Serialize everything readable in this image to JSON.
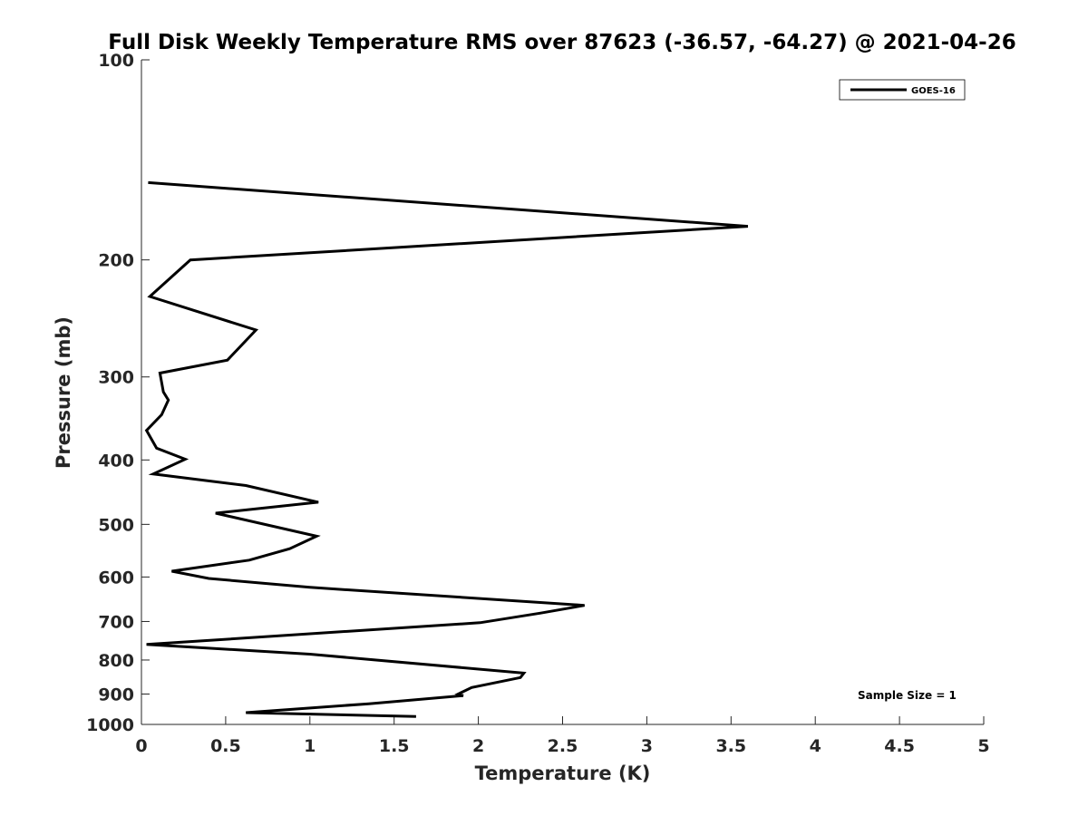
{
  "chart_data": {
    "type": "line",
    "title": "Full Disk Weekly Temperature RMS over 87623 (-36.57, -64.27) @ 2021-04-26",
    "xlabel": "Temperature (K)",
    "ylabel": "Pressure (mb)",
    "xlim": [
      0,
      5
    ],
    "ylim": [
      100,
      1000
    ],
    "y_scale": "log",
    "y_reversed": true,
    "grid": false,
    "xticks": [
      0,
      0.5,
      1,
      1.5,
      2,
      2.5,
      3,
      3.5,
      4,
      4.5,
      5
    ],
    "xtick_labels": [
      "0",
      "0.5",
      "1",
      "1.5",
      "2",
      "2.5",
      "3",
      "3.5",
      "4",
      "4.5",
      "5"
    ],
    "yticks": [
      100,
      200,
      300,
      400,
      500,
      600,
      700,
      800,
      900,
      1000
    ],
    "ytick_labels": [
      "100",
      "200",
      "300",
      "400",
      "500",
      "600",
      "700",
      "800",
      "900",
      "1000"
    ],
    "legend_position": "top-right",
    "series": [
      {
        "name": "GOES-16",
        "color": "#000000",
        "x": [
          0.04,
          3.6,
          0.29,
          0.05,
          0.68,
          0.51,
          0.11,
          0.13,
          0.16,
          0.12,
          0.03,
          0.09,
          0.26,
          0.07,
          0.62,
          1.05,
          0.44,
          1.04,
          0.88,
          0.64,
          0.18,
          0.4,
          1.0,
          2.63,
          2.37,
          2.01,
          0.03,
          1.0,
          2.27,
          2.25,
          1.96,
          1.88,
          1.91,
          1.35,
          0.62,
          1.63
        ],
        "y": [
          153,
          178,
          200,
          227,
          255,
          283,
          296,
          316,
          325,
          342,
          361,
          384,
          399,
          420,
          437,
          463,
          481,
          521,
          544,
          566,
          588,
          603,
          622,
          662,
          680,
          703,
          758,
          784,
          837,
          850,
          880,
          900,
          905,
          931,
          960,
          973
        ]
      }
    ],
    "annotations": [
      "Sample Size = 1"
    ]
  }
}
